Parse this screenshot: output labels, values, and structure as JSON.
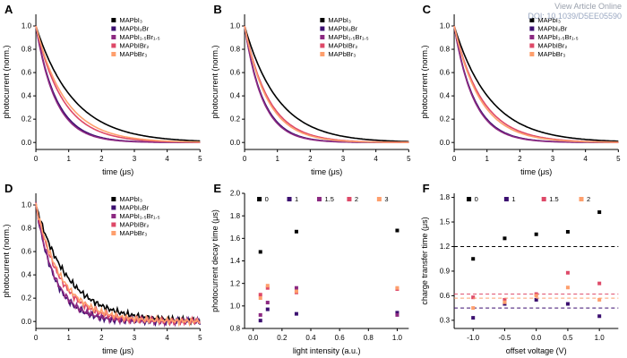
{
  "header": {
    "view_article": "View Article Online",
    "doi": "DOI: 10.1039/D5EE05590"
  },
  "palette": {
    "black": "#000000",
    "dark_purple": "#3b0f70",
    "purple": "#8c2981",
    "salmon": "#de4968",
    "light_orange": "#fe9f6d"
  },
  "chart_data": [
    {
      "panel_label": "A",
      "type": "line",
      "xlabel": "time (μs)",
      "ylabel": "photocurrent (norm.)",
      "xlim": [
        0,
        5
      ],
      "ylim": [
        -0.06,
        1.1
      ],
      "xticks": [
        0,
        1,
        2,
        3,
        4,
        5
      ],
      "xtick_labels": [
        "0",
        "1",
        "2",
        "3",
        "4",
        "5"
      ],
      "yticks": [
        0,
        0.2,
        0.4,
        0.6,
        0.8,
        1.0
      ],
      "ytick_labels": [
        "0.0",
        "0.2",
        "0.4",
        "0.6",
        "0.8",
        "1.0"
      ],
      "legend": "stack",
      "series": [
        {
          "name": "MAPbI₃",
          "color": "#000000",
          "tau": 1.15
        },
        {
          "name": "MAPbI₂Br",
          "color": "#3b0f70",
          "tau": 0.63
        },
        {
          "name": "MAPbI₁.₅Br₁.₅",
          "color": "#8c2981",
          "tau": 0.6
        },
        {
          "name": "MAPbIBr₂",
          "color": "#de4968",
          "tau": 0.82
        },
        {
          "name": "MAPbBr₃",
          "color": "#fe9f6d",
          "tau": 0.9
        }
      ]
    },
    {
      "panel_label": "B",
      "type": "line",
      "xlabel": "time (μs)",
      "ylabel": "photocurrent (norm.)",
      "xlim": [
        0,
        5
      ],
      "ylim": [
        -0.06,
        1.1
      ],
      "xticks": [
        0,
        1,
        2,
        3,
        4,
        5
      ],
      "xtick_labels": [
        "0",
        "1",
        "2",
        "3",
        "4",
        "5"
      ],
      "yticks": [
        0,
        0.2,
        0.4,
        0.6,
        0.8,
        1.0
      ],
      "ytick_labels": [
        "0.0",
        "0.2",
        "0.4",
        "0.6",
        "0.8",
        "1.0"
      ],
      "legend": "stack",
      "series": [
        {
          "name": "MAPbI₃",
          "color": "#000000",
          "tau": 1.02
        },
        {
          "name": "MAPbI₂Br",
          "color": "#3b0f70",
          "tau": 0.57
        },
        {
          "name": "MAPbI₁.₅Br₁.₅",
          "color": "#8c2981",
          "tau": 0.55
        },
        {
          "name": "MAPbIBr₂",
          "color": "#de4968",
          "tau": 0.74
        },
        {
          "name": "MAPbBr₃",
          "color": "#fe9f6d",
          "tau": 0.7
        }
      ]
    },
    {
      "panel_label": "C",
      "type": "line",
      "xlabel": "time (μs)",
      "ylabel": "photocurrent (norm.)",
      "xlim": [
        0,
        5
      ],
      "ylim": [
        -0.06,
        1.1
      ],
      "xticks": [
        0,
        1,
        2,
        3,
        4,
        5
      ],
      "xtick_labels": [
        "0",
        "1",
        "2",
        "3",
        "4",
        "5"
      ],
      "yticks": [
        0,
        0.2,
        0.4,
        0.6,
        0.8,
        1.0
      ],
      "ytick_labels": [
        "0.0",
        "0.2",
        "0.4",
        "0.6",
        "0.8",
        "1.0"
      ],
      "legend": "stack",
      "series": [
        {
          "name": "MAPbI₃",
          "color": "#000000",
          "tau": 1.1
        },
        {
          "name": "MAPbI₂Br",
          "color": "#3b0f70",
          "tau": 0.62
        },
        {
          "name": "MAPbI₁.₅Br₁.₅",
          "color": "#8c2981",
          "tau": 0.6
        },
        {
          "name": "MAPbIBr₂",
          "color": "#de4968",
          "tau": 0.85
        },
        {
          "name": "MAPbBr₃",
          "color": "#fe9f6d",
          "tau": 0.8
        }
      ]
    },
    {
      "panel_label": "D",
      "type": "line",
      "noise": 0.03,
      "xlabel": "time (μs)",
      "ylabel": "photocurrent (norm.)",
      "xlim": [
        0,
        5
      ],
      "ylim": [
        -0.06,
        1.1
      ],
      "xticks": [
        0,
        1,
        2,
        3,
        4,
        5
      ],
      "xtick_labels": [
        "0",
        "1",
        "2",
        "3",
        "4",
        "5"
      ],
      "yticks": [
        0,
        0.2,
        0.4,
        0.6,
        0.8,
        1.0
      ],
      "ytick_labels": [
        "0.0",
        "0.2",
        "0.4",
        "0.6",
        "0.8",
        "1.0"
      ],
      "legend": "stack",
      "series": [
        {
          "name": "MAPbI₃",
          "color": "#000000",
          "tau": 1.0
        },
        {
          "name": "MAPbI₂Br",
          "color": "#3b0f70",
          "tau": 0.58
        },
        {
          "name": "MAPbI₁.₅Br₁.₅",
          "color": "#8c2981",
          "tau": 0.6
        },
        {
          "name": "MAPbIBr₂",
          "color": "#de4968",
          "tau": 0.75
        },
        {
          "name": "MAPbBr₃",
          "color": "#fe9f6d",
          "tau": 0.8
        }
      ]
    },
    {
      "panel_label": "E",
      "type": "scatter",
      "xlabel": "light intensity (a.u.)",
      "ylabel": "photocurrent decay time (μs)",
      "xlim": [
        -0.06,
        1.08
      ],
      "ylim": [
        0.8,
        2.0
      ],
      "xticks": [
        0,
        0.2,
        0.4,
        0.6,
        0.8,
        1.0
      ],
      "xtick_labels": [
        "0.0",
        "0.2",
        "0.4",
        "0.6",
        "0.8",
        "1.0"
      ],
      "yticks": [
        0.8,
        1.0,
        1.2,
        1.4,
        1.6,
        1.8,
        2.0
      ],
      "ytick_labels": [
        "0.8",
        "1.0",
        "1.2",
        "1.4",
        "1.6",
        "1.8",
        "2.0"
      ],
      "legend": "row",
      "series": [
        {
          "name": "0",
          "color": "#000000",
          "points": [
            [
              0.05,
              1.48
            ],
            [
              0.3,
              1.66
            ],
            [
              1.0,
              1.67
            ]
          ]
        },
        {
          "name": "1",
          "color": "#3b0f70",
          "points": [
            [
              0.05,
              0.87
            ],
            [
              0.1,
              0.97
            ],
            [
              0.3,
              0.93
            ],
            [
              1.0,
              0.94
            ]
          ]
        },
        {
          "name": "1.5",
          "color": "#8c2981",
          "points": [
            [
              0.05,
              0.92
            ],
            [
              0.1,
              1.03
            ],
            [
              0.3,
              1.16
            ],
            [
              1.0,
              0.92
            ]
          ]
        },
        {
          "name": "2",
          "color": "#de4968",
          "points": [
            [
              0.05,
              1.1
            ],
            [
              0.1,
              1.16
            ],
            [
              0.3,
              1.12
            ],
            [
              1.0,
              1.15
            ]
          ]
        },
        {
          "name": "3",
          "color": "#fe9f6d",
          "points": [
            [
              0.05,
              1.07
            ],
            [
              0.1,
              1.18
            ],
            [
              0.3,
              1.13
            ],
            [
              1.0,
              1.16
            ]
          ]
        }
      ]
    },
    {
      "panel_label": "F",
      "type": "scatter",
      "xlabel": "offset voltage (V)",
      "ylabel": "charge transfer time (μs)",
      "xlim": [
        -1.3,
        1.3
      ],
      "ylim": [
        0.2,
        1.85
      ],
      "xticks": [
        -1.0,
        -0.5,
        0,
        0.5,
        1.0
      ],
      "xtick_labels": [
        "-1.0",
        "-0.5",
        "0.0",
        "0.5",
        "1.0"
      ],
      "yticks": [
        0.3,
        0.6,
        0.9,
        1.2,
        1.5,
        1.8
      ],
      "ytick_labels": [
        "0.3",
        "0.6",
        "0.9",
        "1.2",
        "1.5",
        "1.8"
      ],
      "legend": "row",
      "series": [
        {
          "name": "0",
          "color": "#000000",
          "hline": 1.2,
          "points": [
            [
              -1.0,
              1.05
            ],
            [
              -0.5,
              1.3
            ],
            [
              0.0,
              1.35
            ],
            [
              0.5,
              1.38
            ],
            [
              1.0,
              1.62
            ]
          ]
        },
        {
          "name": "1",
          "color": "#3b0f70",
          "hline": 0.45,
          "points": [
            [
              -1.0,
              0.33
            ],
            [
              -0.5,
              0.5
            ],
            [
              0.0,
              0.55
            ],
            [
              0.5,
              0.5
            ],
            [
              1.0,
              0.35
            ]
          ]
        },
        {
          "name": "1.5",
          "color": "#de4968",
          "hline": 0.62,
          "points": [
            [
              -1.0,
              0.58
            ],
            [
              -0.5,
              0.55
            ],
            [
              0.0,
              0.62
            ],
            [
              0.5,
              0.88
            ],
            [
              1.0,
              0.75
            ]
          ]
        },
        {
          "name": "2",
          "color": "#fe9f6d",
          "hline": 0.57,
          "points": [
            [
              -1.0,
              0.45
            ],
            [
              -0.5,
              0.52
            ],
            [
              0.0,
              0.6
            ],
            [
              0.5,
              0.7
            ],
            [
              1.0,
              0.55
            ]
          ]
        }
      ]
    }
  ]
}
